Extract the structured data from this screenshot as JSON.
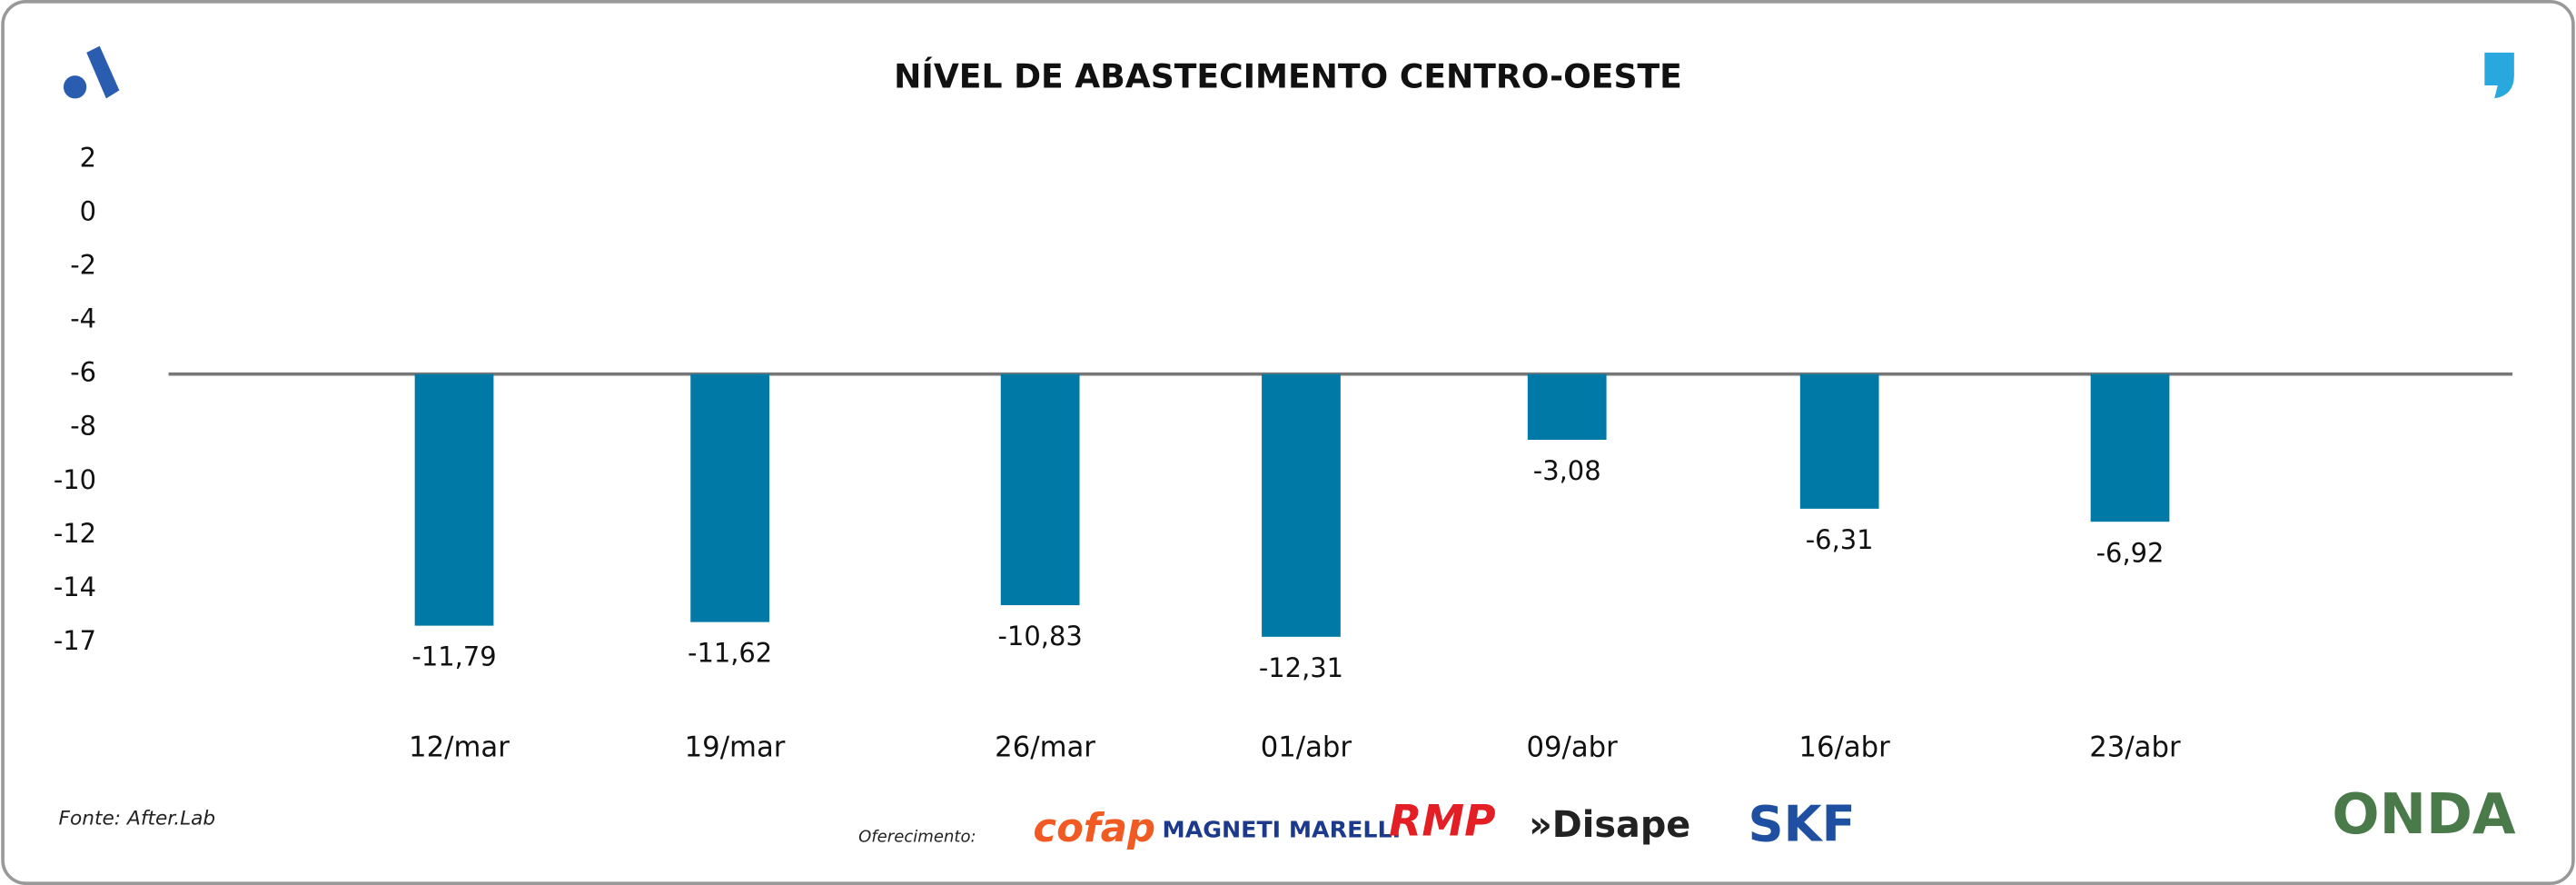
{
  "chart_data": {
    "type": "bar",
    "title": "NÍVEL DE ABASTECIMENTO CENTRO-OESTE",
    "categories": [
      "12/mar",
      "19/mar",
      "26/mar",
      "01/abr",
      "09/abr",
      "16/abr",
      "23/abr"
    ],
    "values": [
      -11.79,
      -11.62,
      -10.83,
      -12.31,
      -3.08,
      -6.31,
      -6.92
    ],
    "value_labels": [
      "-11,79",
      "-11,62",
      "-10,83",
      "-12,31",
      "-3,08",
      "-6,31",
      "-6,92"
    ],
    "color": "#0079a6",
    "yticks": [
      2,
      0,
      -2,
      -4,
      -6,
      -8,
      -10,
      -12,
      -14,
      -17
    ],
    "baseline": -6,
    "source": "Fonte: After.Lab",
    "sponsor_label": "Oferecimento:",
    "sponsors": [
      "cofap",
      "MAGNETI MARELLI",
      "RMP",
      "»Disape",
      "SKF"
    ],
    "footer_brand": "ONDA"
  }
}
